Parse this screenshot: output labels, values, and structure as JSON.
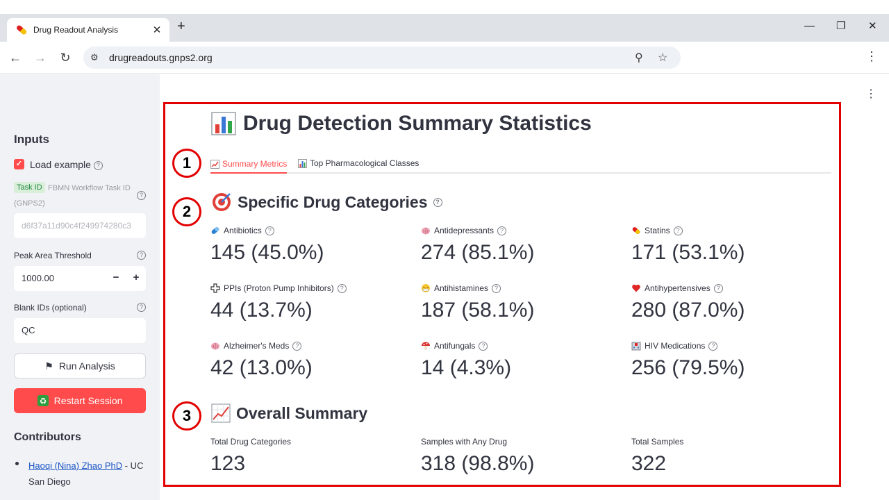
{
  "browser": {
    "tab_title": "Drug Readout Analysis",
    "url": "drugreadouts.gnps2.org"
  },
  "sidebar": {
    "heading": "Inputs",
    "load_example_label": "Load example",
    "load_example_checked": true,
    "task_badge": "Task ID",
    "task_label_line1": "FBMN Workflow Task ID",
    "task_label_line2": "(GNPS2)",
    "task_value": "d6f37a11d90c4f249974280c3",
    "peak_label": "Peak Area Threshold",
    "peak_value": "1000.00",
    "blank_label": "Blank IDs (optional)",
    "blank_value": "QC",
    "run_label": "Run Analysis",
    "restart_label": "Restart Session",
    "contributors_heading": "Contributors",
    "contributor_name": "Haoqi (Nina) Zhao PhD",
    "contributor_affil": " - UC San Diego"
  },
  "main": {
    "title": "Drug Detection Summary Statistics",
    "tabs": [
      {
        "label": "Summary Metrics",
        "active": true
      },
      {
        "label": "Top Pharmacological Classes",
        "active": false
      }
    ],
    "annotations": [
      "1",
      "2",
      "3"
    ],
    "specific_heading": "Specific Drug Categories",
    "metrics": [
      {
        "label": "Antibiotics",
        "value": "145 (45.0%)",
        "icon": "capsule-icon"
      },
      {
        "label": "Antidepressants",
        "value": "274 (85.1%)",
        "icon": "brain-icon"
      },
      {
        "label": "Statins",
        "value": "171 (53.1%)",
        "icon": "pill-icon"
      },
      {
        "label": "PPIs (Proton Pump Inhibitors)",
        "value": "44 (13.7%)",
        "icon": "cross-icon"
      },
      {
        "label": "Antihistamines",
        "value": "187 (58.1%)",
        "icon": "sneeze-face-icon"
      },
      {
        "label": "Antihypertensives",
        "value": "280 (87.0%)",
        "icon": "heart-icon"
      },
      {
        "label": "Alzheimer's Meds",
        "value": "42 (13.0%)",
        "icon": "brain-icon"
      },
      {
        "label": "Antifungals",
        "value": "14 (4.3%)",
        "icon": "mushroom-icon"
      },
      {
        "label": "HIV Medications",
        "value": "256 (79.5%)",
        "icon": "hospital-icon"
      }
    ],
    "overall_heading": "Overall Summary",
    "overall": [
      {
        "label": "Total Drug Categories",
        "value": "123"
      },
      {
        "label": "Samples with Any Drug",
        "value": "318 (98.8%)"
      },
      {
        "label": "Total Samples",
        "value": "322"
      }
    ]
  },
  "colors": {
    "accent": "#ff4b4b",
    "annotation_red": "#e30000",
    "sidebar_bg": "#f0f2f6"
  }
}
